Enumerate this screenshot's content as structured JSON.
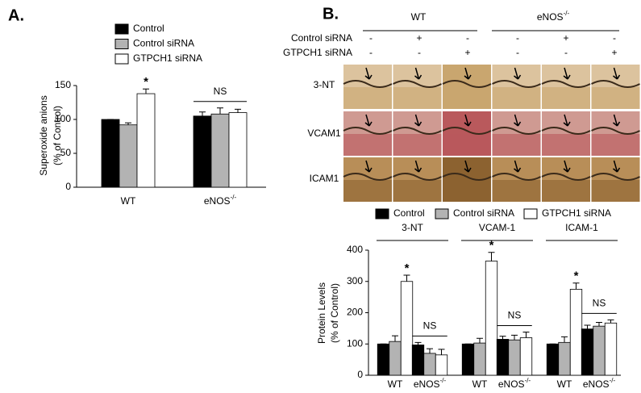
{
  "panel_labels": [
    "A.",
    "B."
  ],
  "image_panel": {
    "column_groups": [
      "WT",
      "eNOS-/-"
    ],
    "rows": [
      {
        "label": "Control siRNA",
        "marks": [
          "-",
          "+",
          "-",
          "-",
          "+",
          "-"
        ]
      },
      {
        "label": "GTPCH1 siRNA",
        "marks": [
          "-",
          "-",
          "+",
          "-",
          "-",
          "+"
        ]
      }
    ],
    "stains": [
      "3-NT",
      "VCAM1",
      "ICAM1"
    ]
  },
  "chart_data": [
    {
      "type": "bar",
      "legend": "top",
      "ylabel": [
        "Superoxide anions",
        "(% of Control)"
      ],
      "categories": [
        "WT",
        "eNOS-/-"
      ],
      "annotations": [
        "*",
        "NS"
      ],
      "series": [
        {
          "name": "Control",
          "color": "#000000",
          "values": [
            100,
            105
          ],
          "errors": [
            0,
            6
          ]
        },
        {
          "name": "Control siRNA",
          "color": "#b3b3b3",
          "values": [
            92,
            108
          ],
          "errors": [
            3,
            9
          ]
        },
        {
          "name": "GTPCH1 siRNA",
          "color": "#ffffff",
          "values": [
            138,
            110
          ],
          "errors": [
            7,
            5
          ]
        }
      ],
      "ylim": [
        0,
        150
      ],
      "yticks": [
        0,
        50,
        100,
        150
      ]
    },
    {
      "type": "bar",
      "legend": "top",
      "ylabel": [
        "Protein Levels",
        "(% of Control)"
      ],
      "groups": [
        "3-NT",
        "VCAM-1",
        "ICAM-1"
      ],
      "categories": [
        "WT",
        "eNOS-/-",
        "WT",
        "eNOS-/-",
        "WT",
        "eNOS-/-"
      ],
      "annotations": [
        "*",
        "NS",
        "*",
        "NS",
        "*",
        "NS"
      ],
      "series": [
        {
          "name": "Control",
          "color": "#000000",
          "values": [
            100,
            97,
            100,
            115,
            100,
            148
          ],
          "errors": [
            0,
            8,
            0,
            10,
            0,
            12
          ]
        },
        {
          "name": "Control siRNA",
          "color": "#b3b3b3",
          "values": [
            108,
            70,
            103,
            113,
            105,
            157
          ],
          "errors": [
            18,
            15,
            15,
            15,
            18,
            12
          ]
        },
        {
          "name": "GTPCH1 siRNA",
          "color": "#ffffff",
          "values": [
            300,
            65,
            365,
            120,
            275,
            167
          ],
          "errors": [
            20,
            18,
            28,
            18,
            20,
            10
          ]
        }
      ],
      "ylim": [
        0,
        400
      ],
      "yticks": [
        0,
        100,
        200,
        300,
        400
      ]
    }
  ]
}
